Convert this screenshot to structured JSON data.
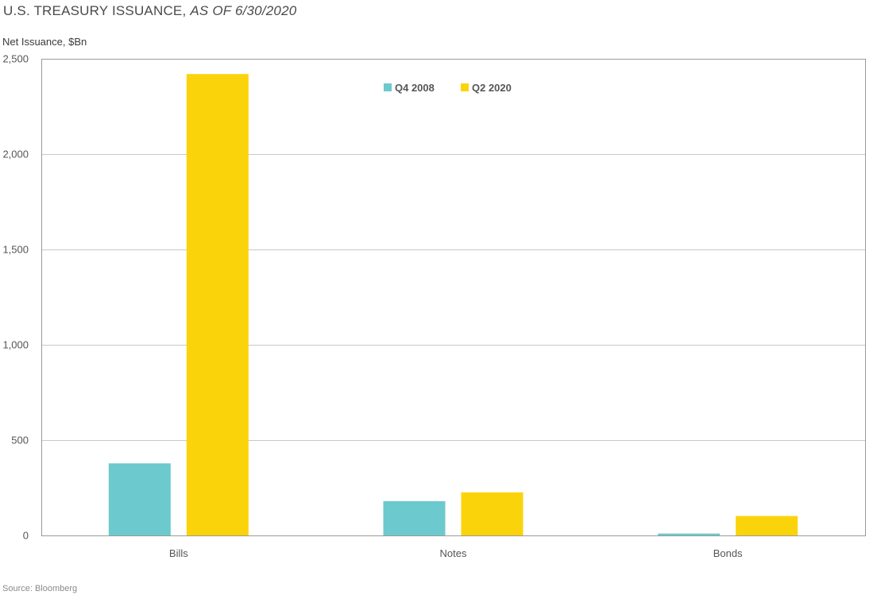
{
  "header": {
    "title": "U.S. TREASURY ISSUANCE,",
    "as_of": "AS OF 6/30/2020"
  },
  "footer": {
    "source": "Source: Bloomberg"
  },
  "colors": {
    "q4_2008": "#6cc9cd",
    "q2_2020": "#fbd30a",
    "grid": "#c8c8c8",
    "axis": "#9a9a9a"
  },
  "chart_data": {
    "type": "bar",
    "ylabel": "Net Issuance, $Bn",
    "xlabel": "",
    "categories": [
      "Bills",
      "Notes",
      "Bonds"
    ],
    "series": [
      {
        "name": "Q4 2008",
        "values": [
          378,
          180,
          10
        ]
      },
      {
        "name": "Q2 2020",
        "values": [
          2420,
          226,
          102
        ]
      }
    ],
    "ylim": [
      0,
      2500
    ],
    "yticks": [
      0,
      500,
      1000,
      1500,
      2000,
      2500
    ],
    "ytick_labels": [
      "0",
      "500",
      "1,000",
      "1,500",
      "2,000",
      "2,500"
    ],
    "grid": true,
    "legend_position": "top-center"
  }
}
